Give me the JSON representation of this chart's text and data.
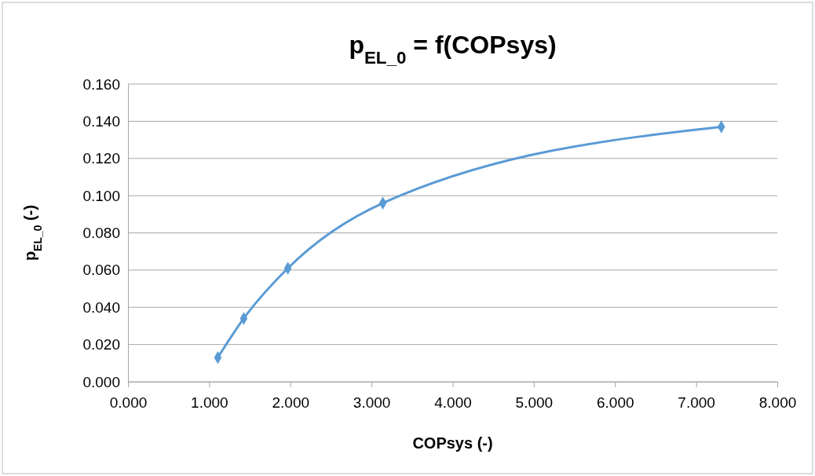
{
  "chart_data": {
    "type": "line",
    "title": "p$_{EL_0}$ = f(COPsys)",
    "xlabel": "COPsys (-)",
    "ylabel": "p$_{EL_0}$ (-)",
    "x": [
      1.107,
      1.426,
      1.97,
      3.14,
      7.31
    ],
    "series": [
      {
        "color": "#5b9bd5",
        "values": [
          0.013,
          0.034,
          0.061,
          0.096,
          0.137
        ]
      }
    ],
    "xlim": [
      0,
      8
    ],
    "xticks": [
      {
        "value": 0,
        "label": "0.000"
      },
      {
        "value": 1,
        "label": "1.000"
      },
      {
        "value": 2,
        "label": "2.000"
      },
      {
        "value": 3,
        "label": "3.000"
      },
      {
        "value": 4,
        "label": "4.000"
      },
      {
        "value": 5,
        "label": "5.000"
      },
      {
        "value": 6,
        "label": "6.000"
      },
      {
        "value": 7,
        "label": "7.000"
      },
      {
        "value": 8,
        "label": "8.000"
      }
    ],
    "ylim": [
      0,
      0.16
    ],
    "yticks": [
      {
        "value": 0,
        "label": "0.000"
      },
      {
        "value": 0.02,
        "label": "0.020"
      },
      {
        "value": 0.04,
        "label": "0.040"
      },
      {
        "value": 0.06,
        "label": "0.060"
      },
      {
        "value": 0.08,
        "label": "0.080"
      },
      {
        "value": 0.1,
        "label": "0.100"
      },
      {
        "value": 0.12,
        "label": "0.120"
      },
      {
        "value": 0.14,
        "label": "0.140"
      },
      {
        "value": 0.16,
        "label": "0.160"
      }
    ],
    "grid": "y",
    "marker": "diamond",
    "line_style": "solid"
  }
}
